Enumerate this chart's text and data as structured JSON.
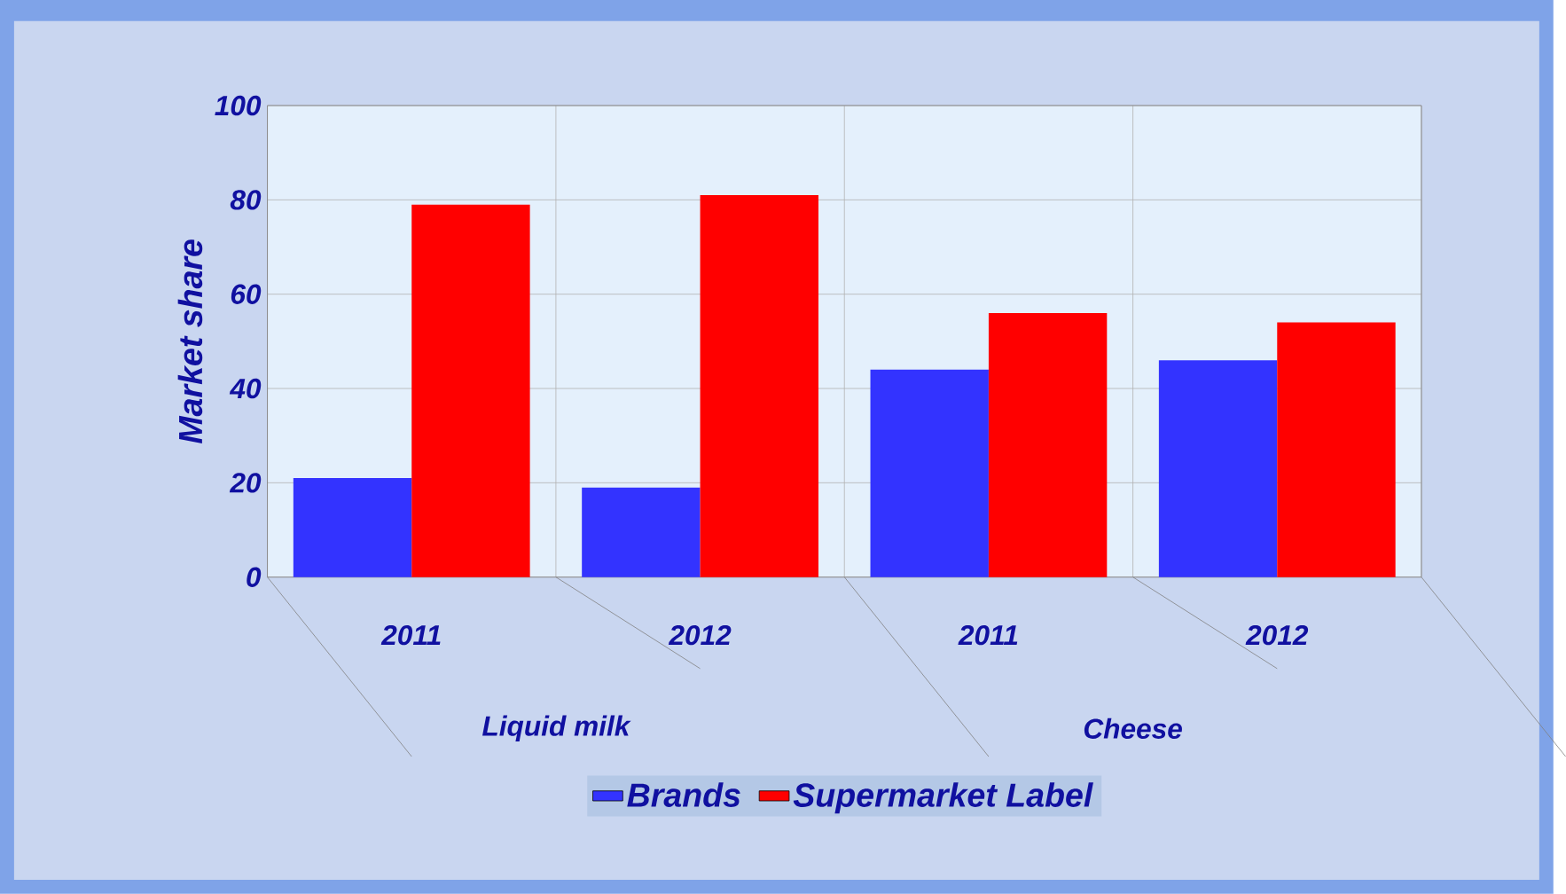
{
  "chart_data": {
    "type": "bar",
    "ylabel": "Market share",
    "categories": [
      "2011",
      "2012",
      "2011",
      "2012"
    ],
    "series": [
      {
        "name": "Brands",
        "color": "#3333ff",
        "values": [
          21,
          19,
          44,
          46
        ]
      },
      {
        "name": "Supermarket Label",
        "color": "#ff0000",
        "values": [
          79,
          81,
          56,
          54
        ]
      }
    ],
    "annotations": [
      "Liquid milk",
      "Cheese"
    ],
    "ylim": [
      0,
      100
    ],
    "yticks": [
      0,
      20,
      40,
      60,
      80,
      100
    ],
    "grid": true,
    "legend": "bottom"
  }
}
